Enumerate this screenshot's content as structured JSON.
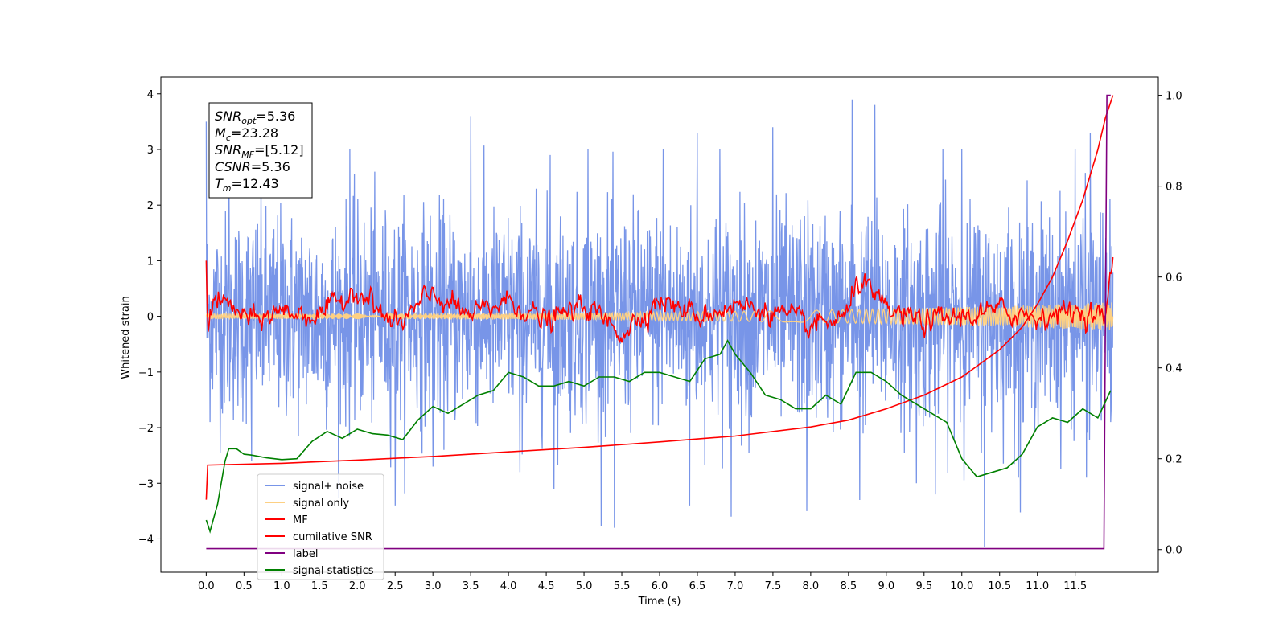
{
  "chart_data": {
    "type": "line",
    "xlabel": "Time (s)",
    "ylabel_left": "Whitened strain",
    "ylabel_right": "",
    "xlim": [
      -0.6,
      12.6
    ],
    "ylim_left": [
      -4.6,
      4.3
    ],
    "ylim_right": [
      -0.05,
      1.04
    ],
    "x_ticks": [
      0.0,
      0.5,
      1.0,
      1.5,
      2.0,
      2.5,
      3.0,
      3.5,
      4.0,
      4.5,
      5.0,
      5.5,
      6.0,
      6.5,
      7.0,
      7.5,
      8.0,
      8.5,
      9.0,
      9.5,
      10.0,
      10.5,
      11.0,
      11.5
    ],
    "x_tick_labels": [
      "0.0",
      "0.5",
      "1.0",
      "1.5",
      "2.0",
      "2.5",
      "3.0",
      "3.5",
      "4.0",
      "4.5",
      "5.0",
      "5.5",
      "6.0",
      "6.5",
      "7.0",
      "7.5",
      "8.0",
      "8.5",
      "9.0",
      "9.5",
      "10.0",
      "10.5",
      "11.0",
      "11.5"
    ],
    "y_ticks_left": [
      -4,
      -3,
      -2,
      -1,
      0,
      1,
      2,
      3,
      4
    ],
    "y_tick_labels_left": [
      "−4",
      "−3",
      "−2",
      "−1",
      "0",
      "1",
      "2",
      "3",
      "4"
    ],
    "y_ticks_right": [
      0.0,
      0.2,
      0.4,
      0.6,
      0.8,
      1.0
    ],
    "y_tick_labels_right": [
      "0.0",
      "0.2",
      "0.4",
      "0.6",
      "0.8",
      "1.0"
    ],
    "grid": false,
    "legend_placement": "lower-left",
    "annotation": {
      "lines": [
        {
          "var": "SNR",
          "sub": "opt",
          "value": "=5.36"
        },
        {
          "var": "M",
          "sub": "c",
          "value": "=23.28"
        },
        {
          "var": "SNR",
          "sub": "MF",
          "value": "=[5.12]"
        },
        {
          "var": "CSNR",
          "sub": "",
          "value": "=5.36"
        },
        {
          "var": "T",
          "sub": "m",
          "value": "=12.43"
        }
      ]
    },
    "series": [
      {
        "name": "signal+ noise",
        "color": "#7895e8",
        "axis": "left",
        "kind": "noise-band",
        "x_range": [
          0.0,
          12.0
        ],
        "center": 0.0,
        "typical_range": [
          -1.5,
          1.5
        ],
        "spikes": [
          [
            0.0,
            3.5
          ],
          [
            0.05,
            -1.9
          ],
          [
            0.3,
            3.0
          ],
          [
            0.6,
            -2.6
          ],
          [
            1.9,
            3.0
          ],
          [
            2.5,
            -3.4
          ],
          [
            3.0,
            -2.7
          ],
          [
            3.5,
            3.6
          ],
          [
            4.15,
            -2.8
          ],
          [
            4.55,
            2.9
          ],
          [
            4.6,
            -3.1
          ],
          [
            5.05,
            3.0
          ],
          [
            5.4,
            -3.8
          ],
          [
            6.05,
            3.0
          ],
          [
            6.4,
            -3.4
          ],
          [
            6.5,
            3.3
          ],
          [
            6.8,
            3.0
          ],
          [
            6.95,
            -3.6
          ],
          [
            7.5,
            3.4
          ],
          [
            7.95,
            -3.5
          ],
          [
            8.55,
            3.9
          ],
          [
            8.65,
            -3.3
          ],
          [
            8.85,
            3.8
          ],
          [
            9.4,
            -3.0
          ],
          [
            9.65,
            -3.2
          ],
          [
            9.75,
            3.0
          ],
          [
            10.0,
            3.0
          ],
          [
            10.3,
            -4.15
          ],
          [
            10.75,
            -2.9
          ],
          [
            11.5,
            3.0
          ],
          [
            11.65,
            -2.9
          ],
          [
            11.7,
            3.3
          ],
          [
            11.97,
            2.3
          ],
          [
            11.97,
            -1.9
          ]
        ]
      },
      {
        "name": "signal only",
        "color": "#fdd083",
        "axis": "left",
        "kind": "chirp",
        "x_range": [
          0.0,
          12.0
        ],
        "amplitude_start": 0.05,
        "amplitude_end": 0.25
      },
      {
        "name": "MF",
        "color": "#ff0000",
        "axis": "left",
        "x": [
          0.0,
          0.02,
          0.1,
          0.3,
          0.6,
          1.0,
          1.5,
          2.0,
          2.5,
          3.0,
          3.5,
          4.0,
          4.5,
          5.0,
          5.5,
          6.0,
          6.5,
          7.0,
          7.5,
          8.0,
          8.5,
          8.6,
          9.0,
          9.5,
          10.0,
          10.5,
          11.0,
          11.5,
          11.9,
          12.0
        ],
        "y": [
          1.0,
          -0.1,
          0.3,
          0.2,
          -0.1,
          0.1,
          0.0,
          0.5,
          -0.2,
          0.4,
          0.0,
          0.3,
          -0.1,
          0.2,
          -0.3,
          0.3,
          0.0,
          0.2,
          0.1,
          -0.2,
          0.0,
          0.7,
          0.1,
          -0.1,
          0.0,
          0.1,
          0.0,
          0.1,
          0.0,
          0.9
        ],
        "amplitude": 0.2
      },
      {
        "name": "cumilative SNR",
        "color": "#ff0000",
        "axis": "right",
        "x": [
          0.0,
          0.02,
          1.0,
          2.0,
          3.0,
          4.0,
          5.0,
          6.0,
          7.0,
          8.0,
          8.5,
          9.0,
          9.5,
          10.0,
          10.5,
          10.8,
          11.0,
          11.2,
          11.4,
          11.6,
          11.8,
          11.9,
          12.0
        ],
        "y": [
          0.11,
          0.186,
          0.19,
          0.197,
          0.205,
          0.215,
          0.225,
          0.237,
          0.25,
          0.27,
          0.285,
          0.31,
          0.34,
          0.38,
          0.44,
          0.49,
          0.54,
          0.6,
          0.68,
          0.77,
          0.88,
          0.95,
          1.0
        ]
      },
      {
        "name": "label",
        "color": "#800080",
        "axis": "right",
        "x": [
          0.0,
          11.88,
          11.92,
          11.97
        ],
        "y": [
          0.002,
          0.002,
          1.0,
          1.0
        ]
      },
      {
        "name": "signal statistics",
        "color": "#008000",
        "axis": "right",
        "x": [
          0.0,
          0.05,
          0.15,
          0.25,
          0.3,
          0.4,
          0.5,
          0.6,
          0.8,
          1.0,
          1.2,
          1.4,
          1.6,
          1.8,
          2.0,
          2.2,
          2.4,
          2.6,
          2.8,
          3.0,
          3.2,
          3.4,
          3.6,
          3.8,
          4.0,
          4.2,
          4.4,
          4.6,
          4.8,
          5.0,
          5.2,
          5.4,
          5.6,
          5.8,
          6.0,
          6.2,
          6.4,
          6.6,
          6.8,
          6.9,
          7.0,
          7.2,
          7.4,
          7.6,
          7.8,
          8.0,
          8.2,
          8.4,
          8.6,
          8.8,
          9.0,
          9.2,
          9.4,
          9.6,
          9.8,
          10.0,
          10.2,
          10.4,
          10.6,
          10.8,
          11.0,
          11.2,
          11.4,
          11.6,
          11.8,
          11.97
        ],
        "y": [
          0.065,
          0.04,
          0.1,
          0.195,
          0.222,
          0.222,
          0.21,
          0.208,
          0.202,
          0.198,
          0.2,
          0.238,
          0.26,
          0.245,
          0.265,
          0.255,
          0.252,
          0.242,
          0.285,
          0.315,
          0.3,
          0.32,
          0.34,
          0.35,
          0.39,
          0.38,
          0.36,
          0.36,
          0.37,
          0.36,
          0.38,
          0.38,
          0.37,
          0.39,
          0.39,
          0.38,
          0.37,
          0.42,
          0.43,
          0.46,
          0.43,
          0.39,
          0.34,
          0.33,
          0.31,
          0.31,
          0.34,
          0.32,
          0.39,
          0.39,
          0.37,
          0.34,
          0.32,
          0.3,
          0.28,
          0.2,
          0.16,
          0.17,
          0.18,
          0.21,
          0.27,
          0.29,
          0.28,
          0.31,
          0.29,
          0.35
        ]
      }
    ]
  }
}
